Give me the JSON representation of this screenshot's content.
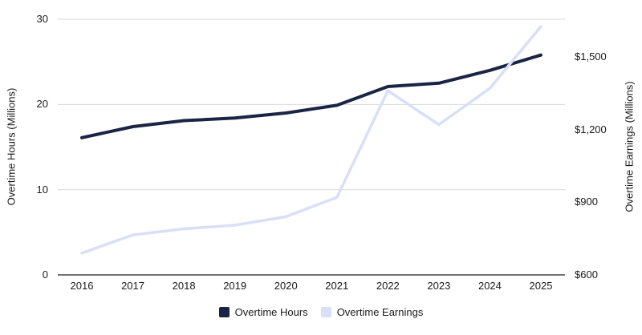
{
  "chart_data": {
    "type": "line",
    "title": "",
    "x_categories": [
      "2016",
      "2017",
      "2018",
      "2019",
      "2020",
      "2021",
      "2022",
      "2023",
      "2024",
      "2025"
    ],
    "series": [
      {
        "name": "Overtime Hours",
        "axis": "left",
        "color": "#1a2544",
        "values": [
          16.1,
          17.4,
          18.1,
          18.4,
          19.0,
          19.9,
          22.1,
          22.5,
          24.0,
          25.8
        ]
      },
      {
        "name": "Overtime Earnings",
        "axis": "right",
        "color": "#d8e0f7",
        "values": [
          690,
          765,
          790,
          805,
          840,
          920,
          1360,
          1220,
          1370,
          1625
        ]
      }
    ],
    "y_left": {
      "label": "Overtime Hours (Millions)",
      "ticks": [
        0,
        10,
        20,
        30
      ],
      "tick_labels": [
        "0",
        "10",
        "20",
        "30"
      ],
      "range": [
        0,
        30
      ]
    },
    "y_right": {
      "label": "Overtime Earnings (Millions)",
      "ticks": [
        600,
        900,
        1200,
        1500
      ],
      "tick_labels": [
        "$600",
        "$900",
        "$1,200",
        "$1,500"
      ],
      "range": [
        600,
        1655
      ]
    },
    "legend": {
      "position": "bottom"
    },
    "grid": {
      "horizontal": true,
      "vertical": false
    },
    "colors": {
      "gridline": "#d9d9d9",
      "baseline": "#444444",
      "text": "#1a1a1a",
      "background": "#ffffff"
    }
  }
}
